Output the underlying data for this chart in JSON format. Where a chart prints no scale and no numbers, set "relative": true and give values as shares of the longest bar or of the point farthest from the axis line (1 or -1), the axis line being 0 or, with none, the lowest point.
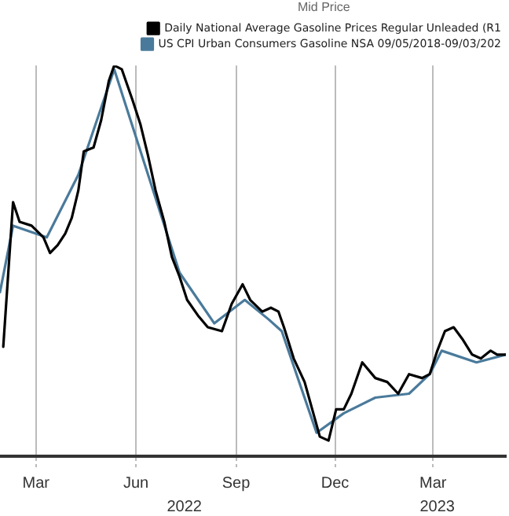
{
  "chart_data": {
    "type": "line",
    "relative": true,
    "legend_title": "Mid Price",
    "legend": "top right",
    "grid": "x",
    "marker": "none",
    "line_style": "solid",
    "xlim": [
      "2022-01-27",
      "2023-05-07"
    ],
    "xticks": [
      {
        "value": "2022-03-01",
        "label": "Mar"
      },
      {
        "value": "2022-06-01",
        "label": "Jun"
      },
      {
        "value": "2022-09-01",
        "label": "Sep"
      },
      {
        "value": "2022-12-01",
        "label": "Dec"
      },
      {
        "value": "2023-03-01",
        "label": "Mar"
      }
    ],
    "annotations": [
      "2022",
      "2023"
    ],
    "series": [
      {
        "name": "Daily National Average Gasoline Prices Regular Unleaded (R1",
        "color": "#000000",
        "x": [
          "2022-01-30",
          "2022-02-08",
          "2022-02-14",
          "2022-02-25",
          "2022-03-08",
          "2022-03-14",
          "2022-03-21",
          "2022-03-28",
          "2022-04-03",
          "2022-04-09",
          "2022-04-14",
          "2022-04-23",
          "2022-04-30",
          "2022-05-07",
          "2022-05-12",
          "2022-05-19",
          "2022-05-29",
          "2022-06-05",
          "2022-06-12",
          "2022-06-19",
          "2022-06-27",
          "2022-07-04",
          "2022-07-11",
          "2022-07-18",
          "2022-07-28",
          "2022-08-06",
          "2022-08-19",
          "2022-08-28",
          "2022-09-07",
          "2022-09-14",
          "2022-09-25",
          "2022-10-03",
          "2022-10-10",
          "2022-10-15",
          "2022-10-24",
          "2022-11-03",
          "2022-11-10",
          "2022-11-17",
          "2022-11-25",
          "2022-12-02",
          "2022-12-09",
          "2022-12-16",
          "2022-12-26",
          "2023-01-07",
          "2023-01-18",
          "2023-01-28",
          "2023-02-07",
          "2023-02-19",
          "2023-02-26",
          "2023-03-05",
          "2023-03-12",
          "2023-03-20",
          "2023-03-28",
          "2023-04-06",
          "2023-04-14",
          "2023-04-23",
          "2023-04-29",
          "2023-05-07"
        ],
        "values": [
          0.28,
          0.65,
          0.6,
          0.59,
          0.56,
          0.52,
          0.54,
          0.57,
          0.61,
          0.68,
          0.78,
          0.79,
          0.86,
          0.96,
          1,
          0.99,
          0.91,
          0.85,
          0.77,
          0.68,
          0.6,
          0.51,
          0.46,
          0.4,
          0.36,
          0.33,
          0.32,
          0.39,
          0.44,
          0.4,
          0.37,
          0.38,
          0.37,
          0.33,
          0.25,
          0.19,
          0.12,
          0.05,
          0.04,
          0.12,
          0.12,
          0.16,
          0.24,
          0.2,
          0.19,
          0.16,
          0.21,
          0.2,
          0.21,
          0.27,
          0.32,
          0.33,
          0.3,
          0.26,
          0.25,
          0.27,
          0.26,
          0.26
        ]
      },
      {
        "name": "US CPI Urban Consumers Gasoline NSA 09/05/2018-09/03/202",
        "color": "#4a7a9b",
        "x": [
          "2022-01-27",
          "2022-02-08",
          "2022-03-11",
          "2022-04-09",
          "2022-05-12",
          "2022-07-11",
          "2022-08-12",
          "2022-09-09",
          "2022-10-01",
          "2022-10-13",
          "2022-11-14",
          "2022-12-09",
          "2023-01-07",
          "2023-02-07",
          "2023-02-26",
          "2023-03-09",
          "2023-04-10",
          "2023-05-07"
        ],
        "values": [
          0.42,
          0.59,
          0.56,
          0.72,
          0.99,
          0.47,
          0.34,
          0.4,
          0.35,
          0.32,
          0.06,
          0.11,
          0.15,
          0.16,
          0.21,
          0.27,
          0.24,
          0.26
        ]
      }
    ]
  }
}
